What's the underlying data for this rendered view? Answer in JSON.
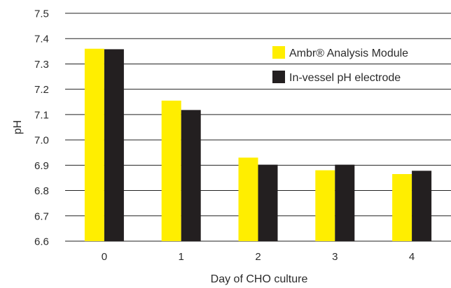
{
  "chart_data": {
    "type": "bar",
    "title": "",
    "xlabel": "Day of CHO culture",
    "ylabel": "pH",
    "categories": [
      "0",
      "1",
      "2",
      "3",
      "4"
    ],
    "ylim": [
      6.6,
      7.5
    ],
    "yticks": [
      "6.6",
      "6.7",
      "6.8",
      "6.9",
      "7.0",
      "7.1",
      "7.2",
      "7.3",
      "7.4",
      "7.5"
    ],
    "grid": "horizontal",
    "legend_position": "top-right",
    "series": [
      {
        "name": "Ambr® Analysis Module",
        "color": "#ffee00",
        "values": [
          7.36,
          7.155,
          6.93,
          6.88,
          6.865
        ]
      },
      {
        "name": "In-vessel pH electrode",
        "color": "#231f20",
        "values": [
          7.358,
          7.118,
          6.902,
          6.902,
          6.878
        ]
      }
    ]
  }
}
